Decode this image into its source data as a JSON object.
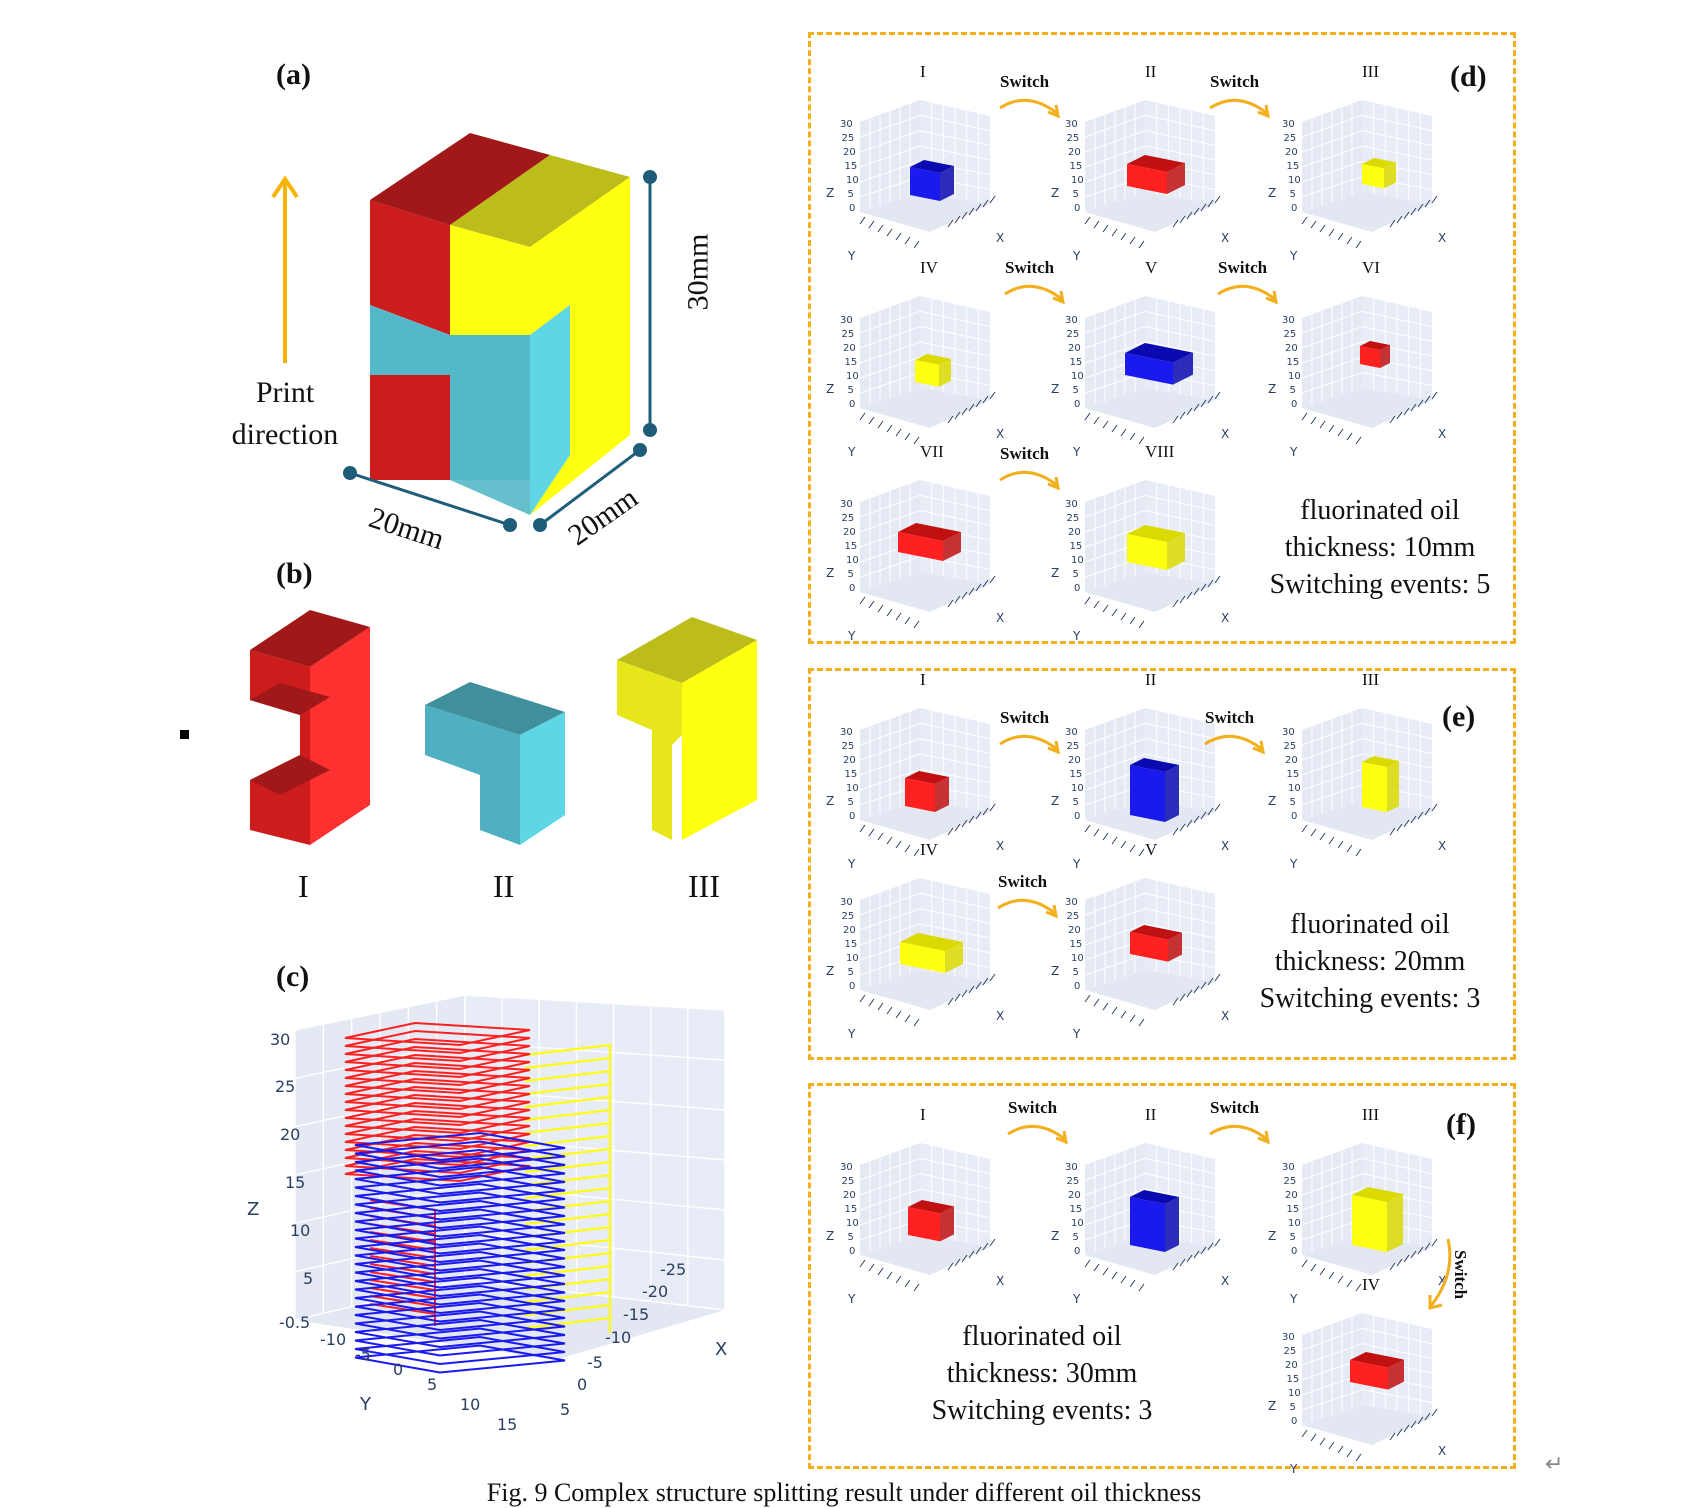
{
  "panels": {
    "a": {
      "label": "(a)",
      "print_direction": [
        "Print",
        "direction"
      ],
      "dim_height": "30mm",
      "dim_width_left": "20mm",
      "dim_width_right": "20mm"
    },
    "b": {
      "label": "(b)",
      "parts": [
        "I",
        "II",
        "III"
      ]
    },
    "c": {
      "label": "(c)",
      "z_axis": "Z",
      "y_axis": "Y",
      "x_axis": "X",
      "z_ticks": [
        "30",
        "25",
        "20",
        "15",
        "10",
        "5",
        "-0.5"
      ],
      "y_ticks": [
        "-10",
        "-5",
        "0",
        "5",
        "10",
        "15"
      ],
      "x_ticks": [
        "-25",
        "-20",
        "-15",
        "-10",
        "-5",
        "0",
        "5"
      ]
    },
    "d": {
      "label": "(d)",
      "switch": "Switch",
      "steps": [
        "I",
        "II",
        "III",
        "IV",
        "V",
        "VI",
        "VII",
        "VIII"
      ],
      "caption": [
        "fluorinated oil",
        "thickness: 10mm",
        "Switching events: 5"
      ]
    },
    "e": {
      "label": "(e)",
      "switch": "Switch",
      "steps": [
        "I",
        "II",
        "III",
        "IV",
        "V"
      ],
      "caption": [
        "fluorinated oil",
        "thickness: 20mm",
        "Switching events: 3"
      ]
    },
    "f": {
      "label": "(f)",
      "switch": "Switch",
      "steps": [
        "I",
        "II",
        "III",
        "IV"
      ],
      "caption": [
        "fluorinated oil",
        "thickness: 30mm",
        "Switching events: 3"
      ]
    }
  },
  "mini_axes": {
    "z": "Z",
    "y": "Y",
    "x": "X",
    "z_ticks": [
      "30",
      "25",
      "20",
      "15",
      "10",
      "5",
      "0"
    ]
  },
  "colors": {
    "red": "#ff2020",
    "blue": "#1a1aee",
    "yellow": "#ffff10",
    "cyan": "#5fd6e6",
    "dark_red": "#a01818",
    "olive": "#bcbc1a",
    "accent": "#f2b01e",
    "teal": "#1f5c7a"
  },
  "caption_below": "Fig. 9 Complex structure splitting result under different oil thickness"
}
